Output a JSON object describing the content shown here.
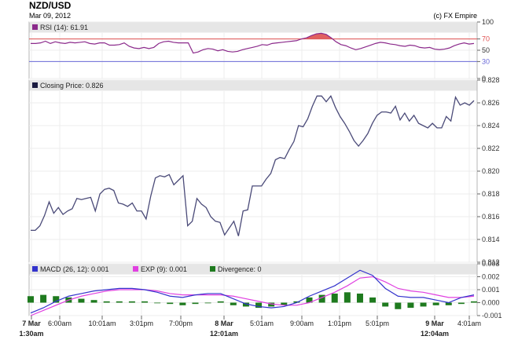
{
  "header": {
    "title": "NZD/USD",
    "date": "Mar 09, 2012",
    "copyright": "(c) FX Empire"
  },
  "chart_data": [
    {
      "type": "line",
      "panel": "rsi",
      "legend": "RSI (14): 61.91",
      "color": "#8b2a8b",
      "ylim": [
        0,
        100
      ],
      "y_ticks": [
        "100",
        "70",
        "50",
        "30",
        "0"
      ],
      "levels": [
        {
          "label": "70",
          "value": 70,
          "color": "#e05050"
        },
        {
          "label": "30",
          "value": 30,
          "color": "#6a6ad8"
        }
      ],
      "overbought_fill": "#e06060",
      "values": [
        62,
        62,
        63,
        66,
        62,
        65,
        63,
        62,
        64,
        63,
        64,
        65,
        62,
        61,
        63,
        63,
        59,
        59,
        60,
        63,
        57,
        54,
        53,
        55,
        53,
        55,
        62,
        65,
        66,
        64,
        63,
        63,
        63,
        45,
        47,
        51,
        53,
        52,
        49,
        51,
        48,
        47,
        48,
        51,
        53,
        55,
        57,
        60,
        59,
        62,
        63,
        64,
        65,
        66,
        67,
        70,
        72,
        76,
        79,
        80,
        78,
        72,
        65,
        60,
        58,
        54,
        51,
        53,
        56,
        59,
        62,
        64,
        63,
        61,
        60,
        58,
        57,
        59,
        58,
        55,
        54,
        55,
        52,
        51,
        52,
        54,
        58,
        61,
        63,
        61,
        62
      ]
    },
    {
      "type": "line",
      "panel": "price",
      "legend": "Closing Price: 0.826",
      "color": "#4a4a78",
      "ylim": [
        0.812,
        0.828
      ],
      "y_ticks": [
        "0.828",
        "0.826",
        "0.824",
        "0.822",
        "0.820",
        "0.818",
        "0.816",
        "0.814",
        "0.812"
      ],
      "x_ticks": [
        "7 Mar\n1:30am",
        "6:00am",
        "10:01am",
        "3:01pm",
        "7:00pm",
        "8 Mar\n12:01am",
        "5:01am",
        "9:00am",
        "1:01pm",
        "5:01pm",
        "9 Mar\n12:04am",
        "4:01am"
      ],
      "values": [
        0.8148,
        0.8148,
        0.8152,
        0.8161,
        0.8173,
        0.8163,
        0.8168,
        0.8162,
        0.8165,
        0.8167,
        0.8176,
        0.8175,
        0.8176,
        0.8177,
        0.8165,
        0.818,
        0.8184,
        0.8185,
        0.8183,
        0.8172,
        0.8171,
        0.8169,
        0.8172,
        0.8165,
        0.8165,
        0.8158,
        0.8178,
        0.8194,
        0.8196,
        0.8195,
        0.8197,
        0.8188,
        0.8192,
        0.8196,
        0.8152,
        0.8156,
        0.8176,
        0.8171,
        0.8168,
        0.816,
        0.8156,
        0.8155,
        0.8144,
        0.815,
        0.8156,
        0.8143,
        0.8165,
        0.8166,
        0.8187,
        0.8187,
        0.8187,
        0.8193,
        0.8198,
        0.821,
        0.8212,
        0.8211,
        0.8219,
        0.8226,
        0.824,
        0.8239,
        0.8246,
        0.8257,
        0.8266,
        0.8266,
        0.8261,
        0.8266,
        0.8256,
        0.8248,
        0.8242,
        0.8235,
        0.8227,
        0.8222,
        0.8227,
        0.8233,
        0.8242,
        0.8249,
        0.8252,
        0.8252,
        0.8251,
        0.8257,
        0.8245,
        0.8251,
        0.8244,
        0.8249,
        0.8242,
        0.824,
        0.8238,
        0.8242,
        0.8238,
        0.8238,
        0.8248,
        0.8244,
        0.8265,
        0.8258,
        0.826,
        0.8258,
        0.8262
      ]
    },
    {
      "type": "line",
      "panel": "macd",
      "ylim": [
        -0.001,
        0.003
      ],
      "y_ticks": [
        "0.003",
        "0.002",
        "0.001",
        "0.000",
        "-0.001"
      ],
      "series": [
        {
          "name": "MACD (26, 12): 0.001",
          "color": "#3333cc",
          "values": [
            -0.0008,
            -0.0004,
            0.0001,
            0.0005,
            0.0007,
            0.0009,
            0.001,
            0.0011,
            0.0011,
            0.001,
            0.0008,
            0.0005,
            0.0004,
            0.0006,
            0.0007,
            0.0007,
            0.0003,
            -0.0001,
            -0.0003,
            -0.0004,
            -0.0003,
            0.0,
            0.0005,
            0.0009,
            0.0013,
            0.0019,
            0.0025,
            0.0021,
            0.0011,
            0.0005,
            0.0004,
            0.0004,
            0.0002,
            0.0,
            0.0004,
            0.0006
          ]
        },
        {
          "name": "EXP (9): 0.001",
          "color": "#e040e0",
          "values": [
            -0.001,
            -0.0006,
            -0.0002,
            0.0002,
            0.0005,
            0.0007,
            0.0009,
            0.001,
            0.001,
            0.001,
            0.0009,
            0.0007,
            0.0006,
            0.0006,
            0.0006,
            0.0006,
            0.0005,
            0.0003,
            0.0001,
            -0.0001,
            -0.0002,
            -0.0002,
            0.0,
            0.0004,
            0.0008,
            0.0013,
            0.0019,
            0.002,
            0.0016,
            0.0011,
            0.0009,
            0.0008,
            0.0006,
            0.0004,
            0.0004,
            0.0005
          ]
        },
        {
          "name": "Divergence: 0",
          "color": "#1e7a1e",
          "kind": "bar",
          "values": [
            0.0005,
            0.0006,
            0.0005,
            0.0004,
            0.0003,
            0.0002,
            0.0001,
            0.0001,
            0.0001,
            0.0001,
            0.0,
            -0.0001,
            -0.0002,
            -0.0001,
            0.0,
            0.0001,
            -0.0002,
            -0.0003,
            -0.0004,
            -0.0003,
            -0.0002,
            0.0001,
            0.0004,
            0.0006,
            0.0007,
            0.0008,
            0.0007,
            0.0004,
            -0.0003,
            -0.0005,
            -0.0004,
            -0.0003,
            -0.0002,
            -0.0002,
            -0.0001,
            0.0001
          ]
        }
      ]
    }
  ]
}
